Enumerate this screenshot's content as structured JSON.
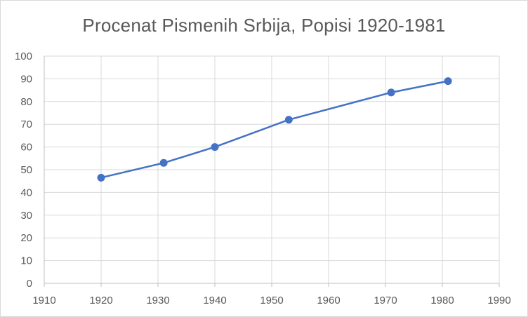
{
  "chart_data": {
    "type": "line",
    "title": "Procenat Pismenih Srbija, Popisi 1920-1981",
    "xlabel": "",
    "ylabel": "",
    "xlim": [
      1910,
      1990
    ],
    "ylim": [
      0,
      100
    ],
    "x_ticks": [
      1910,
      1920,
      1930,
      1940,
      1950,
      1960,
      1970,
      1980,
      1990
    ],
    "y_ticks": [
      0,
      10,
      20,
      30,
      40,
      50,
      60,
      70,
      80,
      90,
      100
    ],
    "grid": true,
    "legend": "none",
    "series": [
      {
        "color": "#4472c4",
        "x": [
          1920,
          1931,
          1940,
          1953,
          1971,
          1981
        ],
        "values": [
          46.5,
          53,
          60,
          72,
          84,
          89
        ]
      }
    ]
  }
}
